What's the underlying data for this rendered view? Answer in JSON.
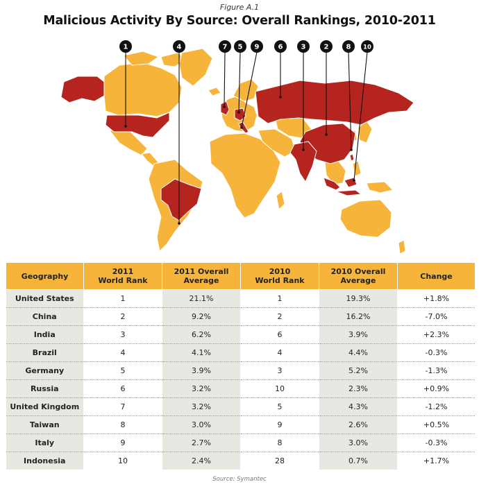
{
  "figure_label": "Figure A.1",
  "title": "Malicious Activity By Source: Overall Rankings, 2010-2011",
  "source": "Source: Symantec",
  "colors": {
    "highlight": "#b5241f",
    "land": "#f6b53a",
    "header": "#f6b53a",
    "stripe": "#e8e8e2"
  },
  "map": {
    "markers": [
      {
        "rank": "1",
        "country": "United States"
      },
      {
        "rank": "4",
        "country": "Brazil"
      },
      {
        "rank": "7",
        "country": "United Kingdom"
      },
      {
        "rank": "5",
        "country": "Germany"
      },
      {
        "rank": "9",
        "country": "Italy"
      },
      {
        "rank": "6",
        "country": "Russia"
      },
      {
        "rank": "3",
        "country": "India"
      },
      {
        "rank": "2",
        "country": "China"
      },
      {
        "rank": "8",
        "country": "Taiwan"
      },
      {
        "rank": "10",
        "country": "Indonesia"
      }
    ]
  },
  "table": {
    "headers": [
      "Geography",
      "2011\nWorld Rank",
      "2011 Overall\nAverage",
      "2010\nWorld Rank",
      "2010 Overall\nAverage",
      "Change"
    ],
    "rows": [
      [
        "United States",
        "1",
        "21.1%",
        "1",
        "19.3%",
        "+1.8%"
      ],
      [
        "China",
        "2",
        "9.2%",
        "2",
        "16.2%",
        "-7.0%"
      ],
      [
        "India",
        "3",
        "6.2%",
        "6",
        "3.9%",
        "+2.3%"
      ],
      [
        "Brazil",
        "4",
        "4.1%",
        "4",
        "4.4%",
        "-0.3%"
      ],
      [
        "Germany",
        "5",
        "3.9%",
        "3",
        "5.2%",
        "-1.3%"
      ],
      [
        "Russia",
        "6",
        "3.2%",
        "10",
        "2.3%",
        "+0.9%"
      ],
      [
        "United Kingdom",
        "7",
        "3.2%",
        "5",
        "4.3%",
        "-1.2%"
      ],
      [
        "Taiwan",
        "8",
        "3.0%",
        "9",
        "2.6%",
        "+0.5%"
      ],
      [
        "Italy",
        "9",
        "2.7%",
        "8",
        "3.0%",
        "-0.3%"
      ],
      [
        "Indonesia",
        "10",
        "2.4%",
        "28",
        "0.7%",
        "+1.7%"
      ]
    ]
  }
}
